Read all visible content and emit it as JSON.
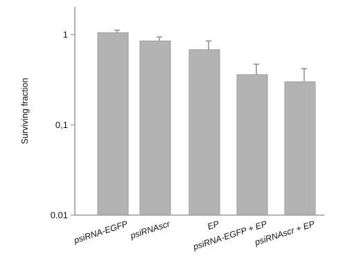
{
  "chart_data": {
    "type": "bar",
    "ylabel": "Surviving fraction",
    "yscale": "log",
    "ylim": [
      0.01,
      2
    ],
    "yticks": [
      {
        "value": 1,
        "label": "1"
      },
      {
        "value": 0.1,
        "label": "0,1"
      },
      {
        "value": 0.01,
        "label": "0.01"
      }
    ],
    "categories": [
      "psiRNA-EGFP",
      "psiRNAscr",
      "EP",
      "psiRNA-EGFP + EP",
      "psiRNAscr + EP"
    ],
    "values": [
      1.05,
      0.85,
      0.68,
      0.36,
      0.3
    ],
    "errors": [
      0.07,
      0.09,
      0.17,
      0.11,
      0.12
    ],
    "grid": false,
    "colors": {
      "bar": "#b3b3b3",
      "bar_edge": "#9a9a9a",
      "axis": "#9a9a9a",
      "text": "#111111"
    }
  }
}
